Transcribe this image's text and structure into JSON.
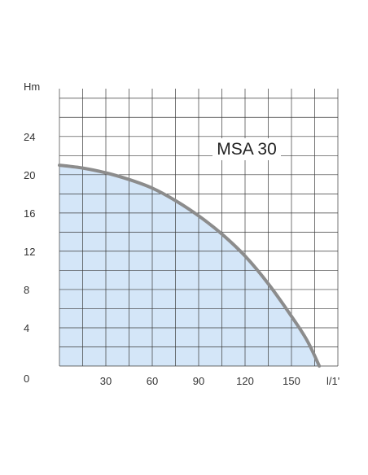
{
  "chart_data": {
    "type": "area",
    "title": "MSA 30",
    "xlabel": "l/1'",
    "ylabel": "Hm",
    "origin_label": "0",
    "x_ticks": [
      "30",
      "60",
      "90",
      "120",
      "150"
    ],
    "y_ticks": [
      "4",
      "8",
      "12",
      "16",
      "20",
      "24"
    ],
    "xlim": [
      0,
      180
    ],
    "ylim": [
      0,
      29
    ],
    "grid": true,
    "x_grid_step": 15,
    "y_grid_step": 2,
    "series": [
      {
        "x": [
          0,
          15,
          30,
          45,
          60,
          75,
          90,
          105,
          120,
          135,
          150,
          160,
          168
        ],
        "values": [
          21.0,
          20.7,
          20.2,
          19.5,
          18.6,
          17.3,
          15.7,
          13.8,
          11.5,
          8.6,
          5.2,
          2.7,
          0
        ]
      }
    ],
    "colors": {
      "fill": "#d4e6f8",
      "curve": "#8c8c8c",
      "grid": "#3a3a3a",
      "text": "#333333"
    }
  }
}
